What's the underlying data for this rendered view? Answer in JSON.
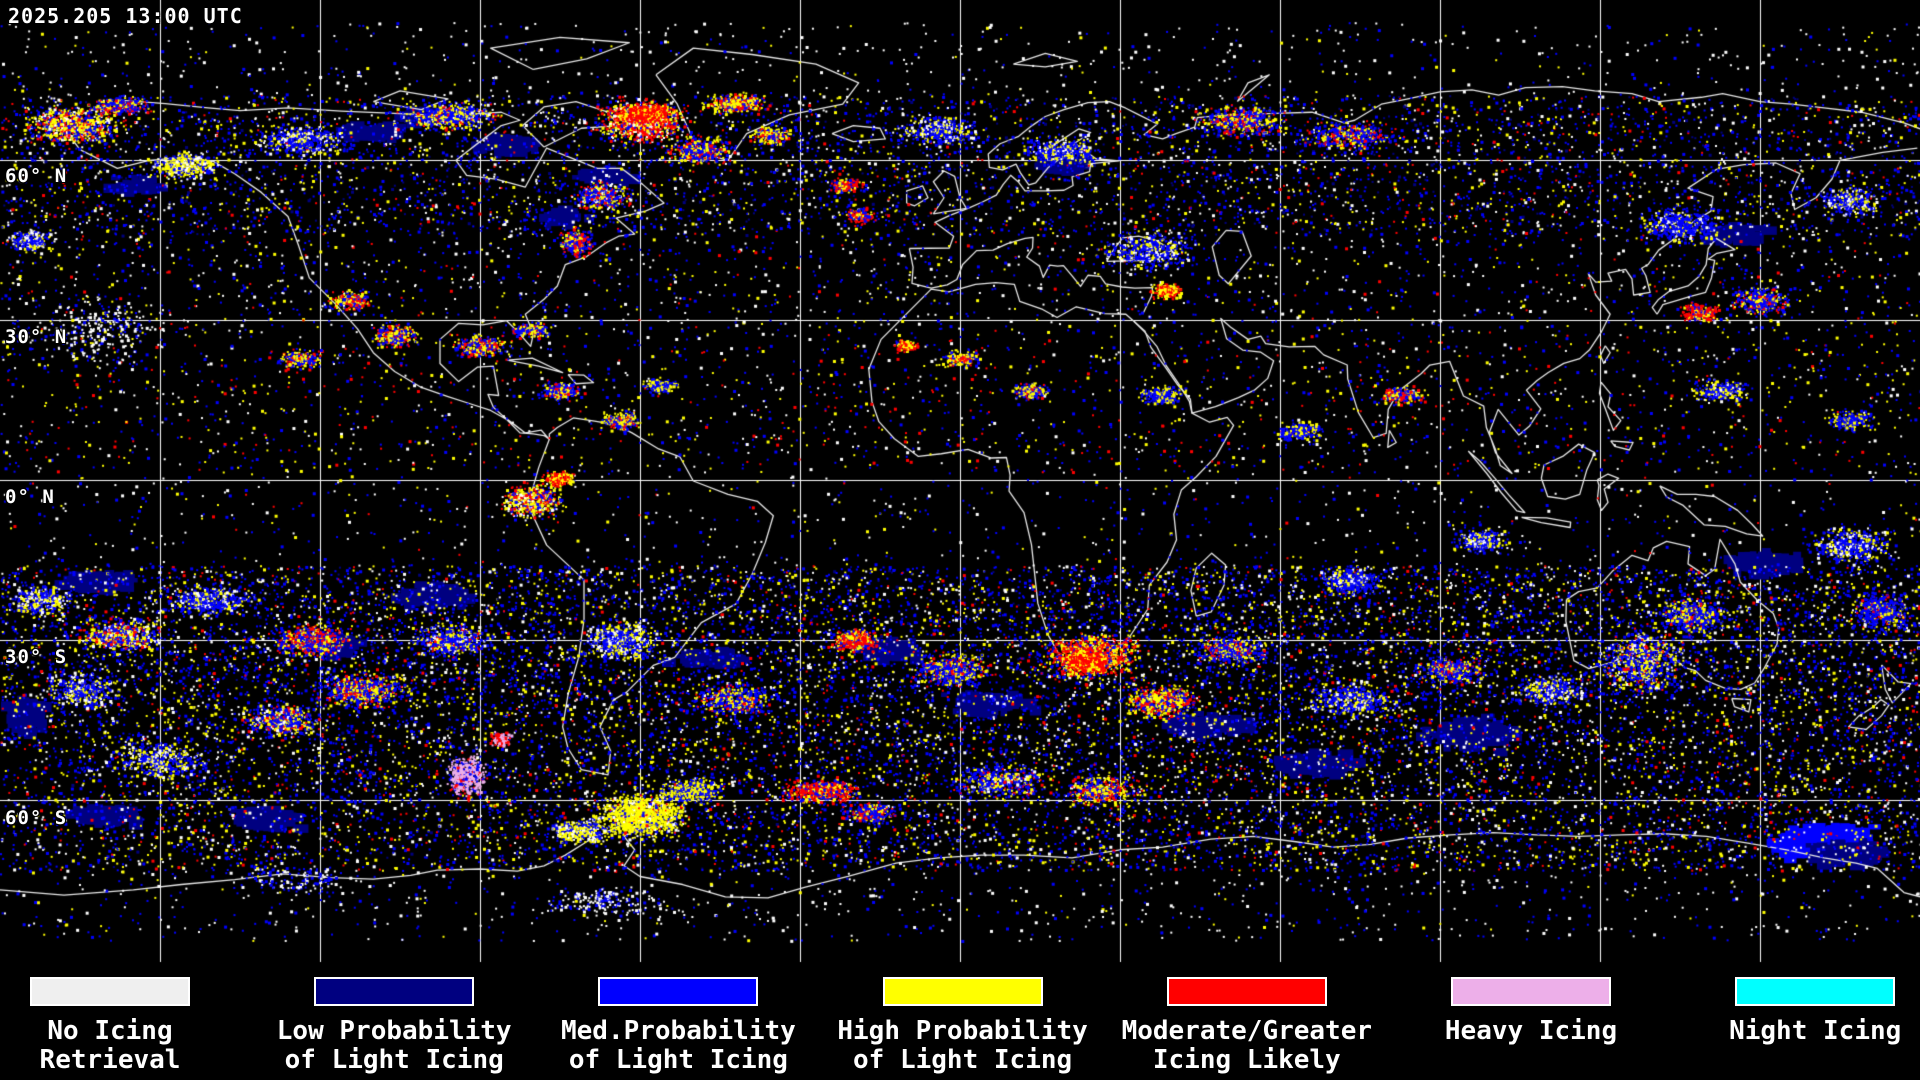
{
  "header": {
    "timestamp": "2025.205 13:00 UTC"
  },
  "map": {
    "background_color": "#000000",
    "gridline_color": "#FFFFFF",
    "coastline_color": "#E8E8E8",
    "grid_spacing_deg": 30,
    "latitude_labels": [
      {
        "label": "60° N",
        "lat": 60
      },
      {
        "label": "30° N",
        "lat": 30
      },
      {
        "label": "0° N",
        "lat": 0
      },
      {
        "label": "30° S",
        "lat": -30
      },
      {
        "label": "60° S",
        "lat": -60
      }
    ]
  },
  "palette": {
    "no_icing_white": "#FFFFFF",
    "low_prob_navy": "#000080",
    "med_prob_blue": "#0000FF",
    "high_prob_yellow": "#FFFF00",
    "moderate_red": "#FF0000",
    "heavy_pink": "#EDAFE9",
    "night_cyan": "#00FFFF"
  },
  "legend": {
    "entries": [
      {
        "line1": "No Icing",
        "line2": "Retrieval",
        "color": "#EFEFEF"
      },
      {
        "line1": "Low Probability",
        "line2": "of Light Icing",
        "color": "#000080"
      },
      {
        "line1": "Med.Probability",
        "line2": "of Light Icing",
        "color": "#0000FF"
      },
      {
        "line1": "High Probability",
        "line2": "of Light Icing",
        "color": "#FFFF00"
      },
      {
        "line1": "Moderate/Greater",
        "line2": "Icing Likely",
        "color": "#FF0000"
      },
      {
        "line1": "Heavy Icing",
        "line2": "",
        "color": "#EDAFE9"
      },
      {
        "line1": "Night Icing",
        "line2": "",
        "color": "#00FFFF"
      }
    ]
  }
}
